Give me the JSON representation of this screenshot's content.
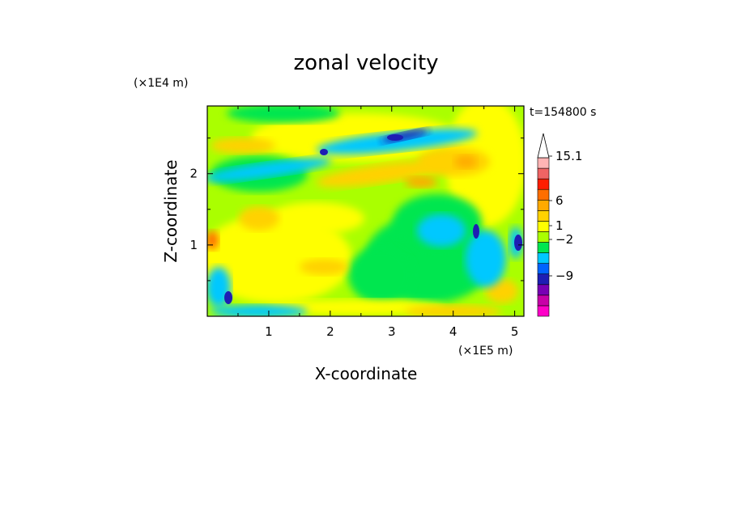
{
  "chart_data": {
    "type": "heatmap",
    "title": "zonal velocity",
    "xlabel": "X-coordinate",
    "ylabel": "Z-coordinate",
    "x_scale_label": "(×1E5 m)",
    "y_scale_label": "(×1E4 m)",
    "time_label": "t=154800 s",
    "xlim": [
      0,
      5.15
    ],
    "ylim": [
      0,
      2.95
    ],
    "x_ticks": [
      {
        "value": 1,
        "label": "1"
      },
      {
        "value": 2,
        "label": "2"
      },
      {
        "value": 3,
        "label": "3"
      },
      {
        "value": 4,
        "label": "4"
      },
      {
        "value": 5,
        "label": "5"
      }
    ],
    "y_ticks": [
      {
        "value": 1,
        "label": "1"
      },
      {
        "value": 2,
        "label": "2"
      }
    ],
    "colorbar": {
      "label_values": [
        {
          "value": 15.1,
          "label": "15.1"
        },
        {
          "value": 6,
          "label": "6"
        },
        {
          "value": 1,
          "label": "1"
        },
        {
          "value": -2,
          "label": "−2"
        },
        {
          "value": -9,
          "label": "−9"
        }
      ],
      "levels": [
        {
          "color": "#ff00c8"
        },
        {
          "color": "#c800a8"
        },
        {
          "color": "#7800b4"
        },
        {
          "color": "#1e1eb4"
        },
        {
          "color": "#0064ff"
        },
        {
          "color": "#00c8ff"
        },
        {
          "color": "#00e650"
        },
        {
          "color": "#aaff00"
        },
        {
          "color": "#ffff00"
        },
        {
          "color": "#ffd200"
        },
        {
          "color": "#ffaa00"
        },
        {
          "color": "#ff6e00"
        },
        {
          "color": "#ff1e00"
        },
        {
          "color": "#f06464"
        },
        {
          "color": "#ffb4b4"
        },
        {
          "color": "#ffffff"
        }
      ]
    }
  }
}
